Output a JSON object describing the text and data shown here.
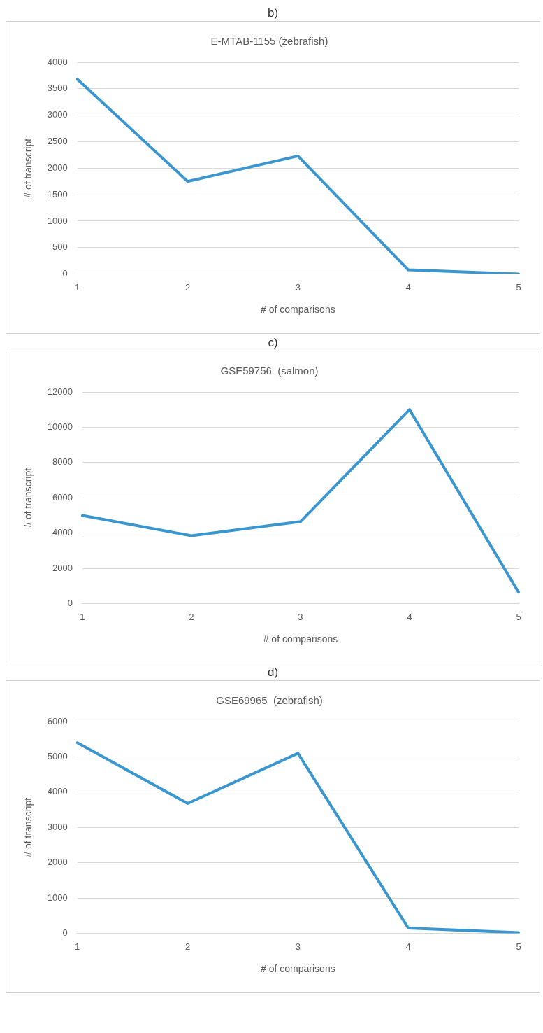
{
  "chart_data": [
    {
      "type": "line",
      "title": "E-MTAB-1155 (zebrafish)",
      "xlabel": "# of comparisons",
      "ylabel": "# of transcript",
      "annotations": [
        "b)"
      ],
      "categories": [
        "1",
        "2",
        "3",
        "4",
        "5"
      ],
      "values": [
        3680,
        1750,
        2230,
        80,
        0
      ],
      "color": "#3a96cf",
      "ylim": [
        0,
        4000
      ],
      "yticks": [
        0,
        500,
        1000,
        1500,
        2000,
        2500,
        3000,
        3500,
        4000
      ],
      "grid": "y"
    },
    {
      "type": "line",
      "title": "GSE59756  (salmon)",
      "xlabel": "# of comparisons",
      "ylabel": "# of transcript",
      "annotations": [
        "c)"
      ],
      "categories": [
        "1",
        "2",
        "3",
        "4",
        "5"
      ],
      "values": [
        5000,
        3850,
        4650,
        11000,
        650
      ],
      "color": "#3a96cf",
      "ylim": [
        0,
        12000
      ],
      "yticks": [
        0,
        2000,
        4000,
        6000,
        8000,
        10000,
        12000
      ],
      "grid": "y"
    },
    {
      "type": "line",
      "title": "GSE69965  (zebrafish)",
      "xlabel": "# of comparisons",
      "ylabel": "# of transcript",
      "annotations": [
        "d)"
      ],
      "categories": [
        "1",
        "2",
        "3",
        "4",
        "5"
      ],
      "values": [
        5400,
        3680,
        5100,
        150,
        20
      ],
      "color": "#3a96cf",
      "ylim": [
        0,
        6000
      ],
      "yticks": [
        0,
        1000,
        2000,
        3000,
        4000,
        5000,
        6000
      ],
      "grid": "y"
    }
  ]
}
